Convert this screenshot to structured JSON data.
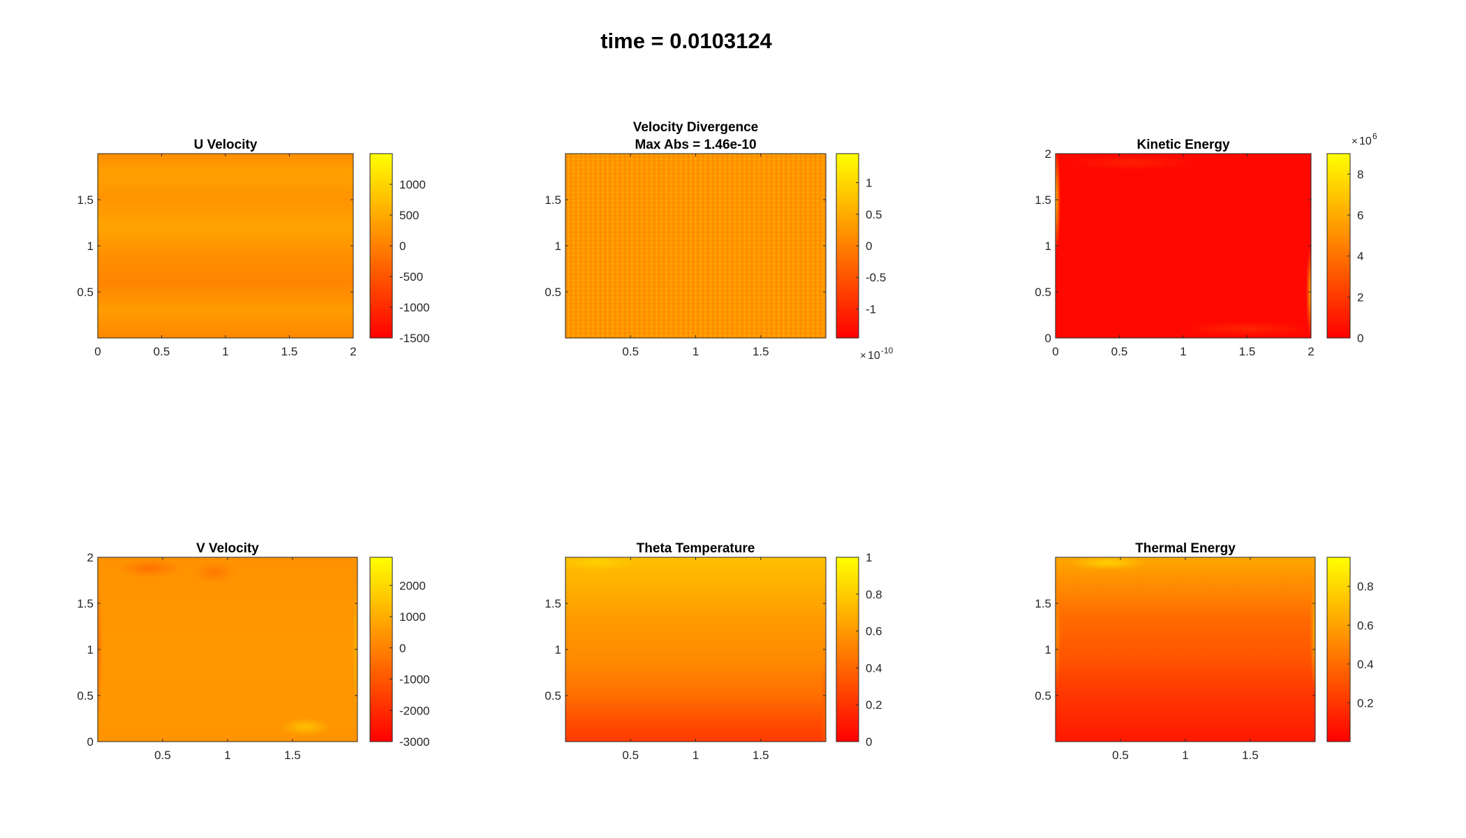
{
  "figure": {
    "title": "time = 0.0103124"
  },
  "colors": {
    "colormap": [
      "#FF0000",
      "#FF8000",
      "#FFFF00"
    ],
    "axis": "#262626"
  },
  "chart_data": [
    {
      "type": "heatmap",
      "title": "U Velocity",
      "xlim": [
        0,
        2
      ],
      "ylim": [
        0,
        2
      ],
      "xticks": [
        "0",
        "0.5",
        "1",
        "1.5",
        "2"
      ],
      "yticks": [
        "0.5",
        "1",
        "1.5"
      ],
      "colorbar": {
        "range": [
          -1500,
          1500
        ],
        "ticks": [
          "1000",
          "500",
          "0",
          "-500",
          "-1000",
          "-1500"
        ],
        "exponent": ""
      },
      "field": "near 0 in the interior, strong positive and negative streaks along the top and bottom walls"
    },
    {
      "type": "heatmap",
      "title": "Velocity Divergence",
      "subtitle": "Max Abs = 1.46e-10",
      "xlim": [
        0,
        2
      ],
      "ylim": [
        0,
        2
      ],
      "xticks": [
        "0.5",
        "1",
        "1.5"
      ],
      "yticks": [
        "0.5",
        "1",
        "1.5"
      ],
      "colorbar": {
        "range": [
          -1.46,
          1.46
        ],
        "ticks": [
          "1",
          "0.5",
          "0",
          "-0.5",
          "-1"
        ],
        "exponent": "10",
        "exponent_power": "-10"
      },
      "field": "noise around 0 across the whole domain"
    },
    {
      "type": "heatmap",
      "title": "Kinetic Energy",
      "xlim": [
        0,
        2
      ],
      "ylim": [
        0,
        2
      ],
      "xticks": [
        "0",
        "0.5",
        "1",
        "1.5",
        "2"
      ],
      "yticks": [
        "0",
        "0.5",
        "1",
        "1.5",
        "2"
      ],
      "colorbar": {
        "range": [
          0,
          9
        ],
        "ticks": [
          "8",
          "6",
          "4",
          "2",
          "0"
        ],
        "exponent": "10",
        "exponent_power": "6"
      },
      "field": "near 0 everywhere, small highs at the side walls"
    },
    {
      "type": "heatmap",
      "title": "V Velocity",
      "xlim": [
        0,
        2
      ],
      "ylim": [
        0,
        2
      ],
      "xticks": [
        "0.5",
        "1",
        "1.5"
      ],
      "yticks": [
        "0",
        "0.5",
        "1",
        "1.5",
        "2"
      ],
      "colorbar": {
        "range": [
          -3000,
          2900
        ],
        "ticks": [
          "2000",
          "1000",
          "0",
          "-1000",
          "-2000",
          "-3000"
        ],
        "exponent": ""
      },
      "field": "near 0 with small swirls near the walls"
    },
    {
      "type": "heatmap",
      "title": "Theta Temperature",
      "xlim": [
        0,
        2
      ],
      "ylim": [
        0,
        2
      ],
      "xticks": [
        "0.5",
        "1",
        "1.5"
      ],
      "yticks": [
        "0.5",
        "1",
        "1.5"
      ],
      "colorbar": {
        "range": [
          0,
          1
        ],
        "ticks": [
          "1",
          "0.8",
          "0.6",
          "0.4",
          "0.2",
          "0"
        ],
        "exponent": ""
      },
      "field": "increasing from about 0.3 at the bottom to about 0.8 at the top"
    },
    {
      "type": "heatmap",
      "title": "Thermal Energy",
      "xlim": [
        0,
        2
      ],
      "ylim": [
        0,
        2
      ],
      "xticks": [
        "0.5",
        "1",
        "1.5"
      ],
      "yticks": [
        "0.5",
        "1",
        "1.5"
      ],
      "colorbar": {
        "range": [
          0,
          0.95
        ],
        "ticks": [
          "0.8",
          "0.6",
          "0.4",
          "0.2"
        ],
        "exponent": ""
      },
      "field": "increasing from about 0.15 at the bottom to about 0.75 at the top"
    }
  ]
}
